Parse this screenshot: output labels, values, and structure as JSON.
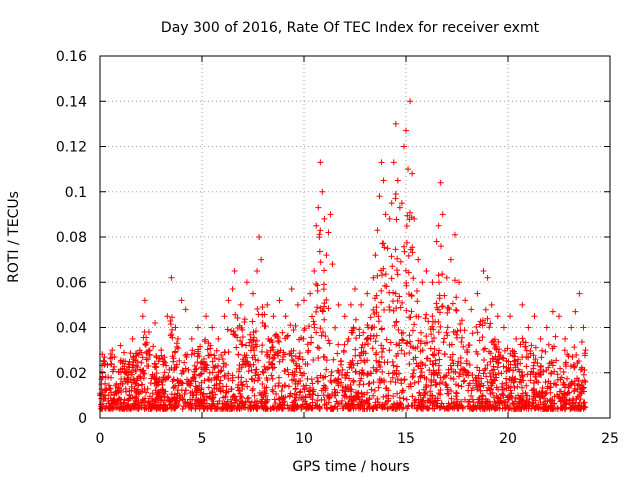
{
  "chart_data": {
    "type": "scatter",
    "title": "Day 300 of 2016, Rate Of TEC Index for receiver exmt",
    "xlabel": "GPS time / hours",
    "ylabel": "ROTI / TECUs",
    "xlim": [
      0,
      25
    ],
    "ylim": [
      0,
      0.16
    ],
    "xticks": [
      0,
      5,
      10,
      15,
      20,
      25
    ],
    "xtick_labels": [
      "0",
      "5",
      "10",
      "15",
      "20",
      "25"
    ],
    "yticks": [
      0,
      0.02,
      0.04,
      0.06,
      0.08,
      0.1,
      0.12,
      0.14,
      0.16
    ],
    "ytick_labels": [
      "0",
      "0.02",
      "0.04",
      "0.06",
      "0.08",
      "0.1",
      "0.12",
      "0.14",
      "0.16"
    ],
    "grid": true,
    "marker": "+",
    "color": "#ff0000",
    "series": [
      {
        "name": "ROTI",
        "points": [
          [
            0.0,
            0.01
          ],
          [
            0.2,
            0.025
          ],
          [
            0.4,
            0.018
          ],
          [
            0.6,
            0.03
          ],
          [
            0.8,
            0.015
          ],
          [
            1.0,
            0.032
          ],
          [
            1.3,
            0.02
          ],
          [
            1.6,
            0.035
          ],
          [
            1.9,
            0.028
          ],
          [
            2.1,
            0.045
          ],
          [
            2.2,
            0.052
          ],
          [
            2.4,
            0.038
          ],
          [
            2.7,
            0.042
          ],
          [
            3.0,
            0.03
          ],
          [
            3.3,
            0.045
          ],
          [
            3.5,
            0.062
          ],
          [
            3.7,
            0.04
          ],
          [
            4.0,
            0.052
          ],
          [
            4.2,
            0.048
          ],
          [
            4.5,
            0.035
          ],
          [
            4.8,
            0.04
          ],
          [
            5.2,
            0.045
          ],
          [
            5.5,
            0.04
          ],
          [
            5.8,
            0.035
          ],
          [
            6.1,
            0.045
          ],
          [
            6.3,
            0.052
          ],
          [
            6.5,
            0.057
          ],
          [
            6.6,
            0.065
          ],
          [
            6.9,
            0.05
          ],
          [
            7.2,
            0.06
          ],
          [
            7.5,
            0.055
          ],
          [
            7.7,
            0.065
          ],
          [
            7.8,
            0.08
          ],
          [
            7.9,
            0.07
          ],
          [
            8.2,
            0.05
          ],
          [
            8.5,
            0.045
          ],
          [
            8.8,
            0.052
          ],
          [
            9.1,
            0.045
          ],
          [
            9.4,
            0.057
          ],
          [
            9.7,
            0.05
          ],
          [
            10.0,
            0.052
          ],
          [
            10.3,
            0.055
          ],
          [
            10.5,
            0.065
          ],
          [
            10.6,
            0.085
          ],
          [
            10.7,
            0.093
          ],
          [
            10.8,
            0.113
          ],
          [
            10.9,
            0.1
          ],
          [
            11.0,
            0.088
          ],
          [
            11.1,
            0.072
          ],
          [
            11.2,
            0.082
          ],
          [
            11.3,
            0.09
          ],
          [
            11.4,
            0.068
          ],
          [
            11.7,
            0.05
          ],
          [
            12.0,
            0.045
          ],
          [
            12.3,
            0.05
          ],
          [
            12.5,
            0.057
          ],
          [
            12.8,
            0.05
          ],
          [
            13.1,
            0.055
          ],
          [
            13.4,
            0.062
          ],
          [
            13.5,
            0.072
          ],
          [
            13.6,
            0.083
          ],
          [
            13.7,
            0.098
          ],
          [
            13.8,
            0.113
          ],
          [
            13.9,
            0.105
          ],
          [
            14.0,
            0.09
          ],
          [
            14.1,
            0.075
          ],
          [
            14.2,
            0.088
          ],
          [
            14.3,
            0.095
          ],
          [
            14.4,
            0.113
          ],
          [
            14.5,
            0.13
          ],
          [
            14.6,
            0.105
          ],
          [
            14.7,
            0.093
          ],
          [
            14.8,
            0.095
          ],
          [
            14.9,
            0.12
          ],
          [
            15.0,
            0.127
          ],
          [
            15.1,
            0.11
          ],
          [
            15.2,
            0.14
          ],
          [
            15.3,
            0.108
          ],
          [
            15.4,
            0.088
          ],
          [
            15.6,
            0.07
          ],
          [
            15.8,
            0.06
          ],
          [
            16.0,
            0.065
          ],
          [
            16.3,
            0.06
          ],
          [
            16.5,
            0.078
          ],
          [
            16.6,
            0.085
          ],
          [
            16.7,
            0.104
          ],
          [
            16.8,
            0.09
          ],
          [
            17.0,
            0.062
          ],
          [
            17.2,
            0.07
          ],
          [
            17.4,
            0.081
          ],
          [
            17.6,
            0.06
          ],
          [
            17.9,
            0.052
          ],
          [
            18.2,
            0.048
          ],
          [
            18.5,
            0.055
          ],
          [
            18.8,
            0.065
          ],
          [
            19.0,
            0.062
          ],
          [
            19.2,
            0.05
          ],
          [
            19.5,
            0.045
          ],
          [
            19.8,
            0.04
          ],
          [
            20.1,
            0.045
          ],
          [
            20.4,
            0.035
          ],
          [
            20.7,
            0.05
          ],
          [
            21.0,
            0.04
          ],
          [
            21.3,
            0.045
          ],
          [
            21.6,
            0.035
          ],
          [
            21.9,
            0.04
          ],
          [
            22.2,
            0.047
          ],
          [
            22.5,
            0.045
          ],
          [
            22.8,
            0.035
          ],
          [
            23.1,
            0.04
          ],
          [
            23.3,
            0.047
          ],
          [
            23.5,
            0.055
          ],
          [
            23.7,
            0.04
          ],
          [
            23.8,
            0.03
          ]
        ]
      }
    ]
  }
}
